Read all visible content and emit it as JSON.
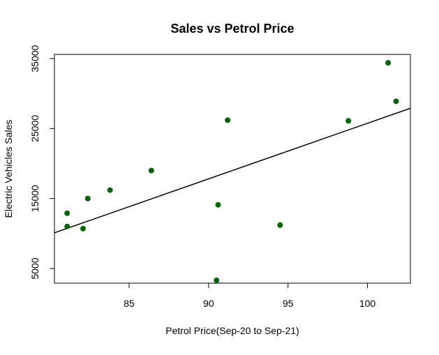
{
  "chart_data": {
    "type": "scatter",
    "title": "Sales vs Petrol Price",
    "xlabel": "Petrol Price(Sep-20 to Sep-21)",
    "ylabel": "Electric Vehicles Sales",
    "xlim": [
      80.3,
      102.7
    ],
    "ylim": [
      2900,
      35600
    ],
    "xticks": [
      85,
      90,
      95,
      100
    ],
    "yticks": [
      5000,
      15000,
      25000,
      35000
    ],
    "grid": false,
    "legend": "none",
    "points": [
      {
        "x": 81.1,
        "y": 12900
      },
      {
        "x": 81.1,
        "y": 11000
      },
      {
        "x": 82.1,
        "y": 10700
      },
      {
        "x": 82.4,
        "y": 15000
      },
      {
        "x": 83.8,
        "y": 16200
      },
      {
        "x": 86.4,
        "y": 19000
      },
      {
        "x": 90.5,
        "y": 3300
      },
      {
        "x": 90.6,
        "y": 14100
      },
      {
        "x": 91.2,
        "y": 26200
      },
      {
        "x": 94.5,
        "y": 11200
      },
      {
        "x": 98.8,
        "y": 26100
      },
      {
        "x": 101.3,
        "y": 34400
      },
      {
        "x": 101.8,
        "y": 28900
      }
    ],
    "trendline": {
      "type": "linear",
      "start": {
        "x": 80.3,
        "y": 10100
      },
      "end": {
        "x": 102.7,
        "y": 27900
      }
    },
    "colors": {
      "points": "#006400",
      "line": "#000000",
      "axes": "#000000"
    }
  }
}
